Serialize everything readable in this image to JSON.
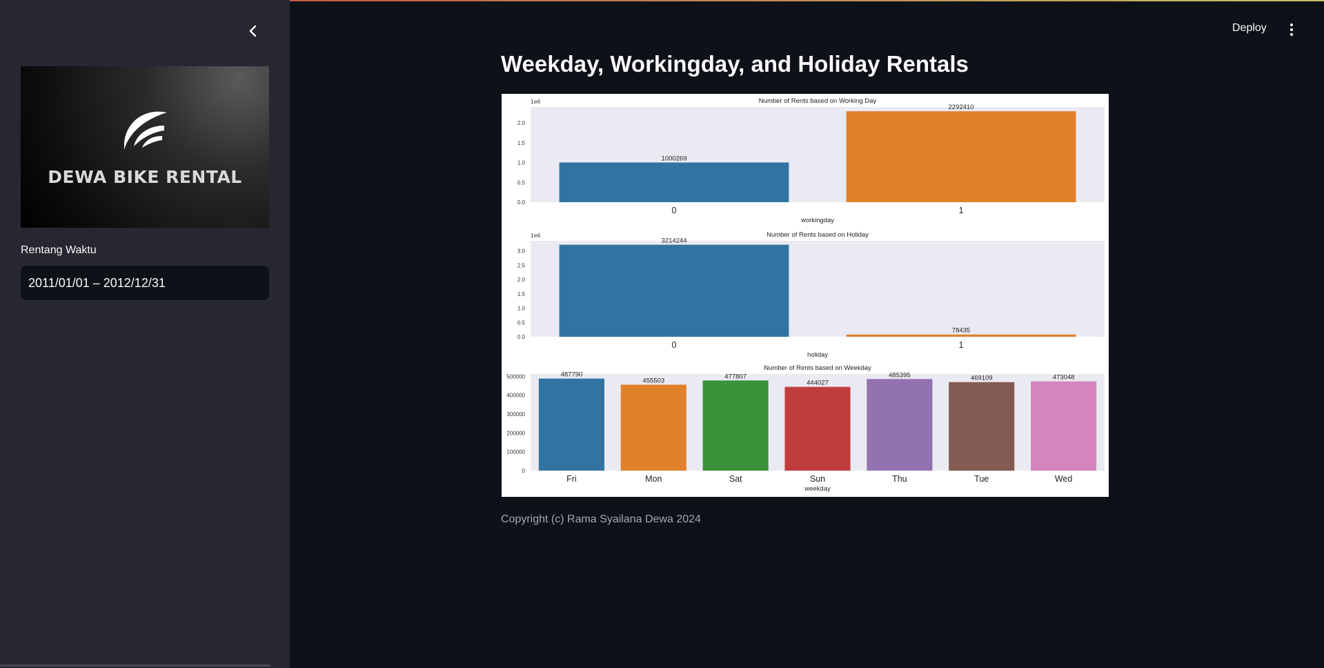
{
  "sidebar": {
    "logo_text": "DEWA BIKE RENTAL",
    "date_label": "Rentang Waktu",
    "date_range": "2011/01/01 – 2012/12/31"
  },
  "header": {
    "deploy_label": "Deploy"
  },
  "main": {
    "title": "Weekday, Workingday, and Holiday Rentals",
    "footer": "Copyright (c) Rama Syailana Dewa 2024"
  },
  "chart_data": [
    {
      "type": "bar",
      "title": "Number of Rents based on Working Day",
      "xlabel": "workingday",
      "ylabel": "",
      "offset_label": "1e6",
      "categories": [
        "0",
        "1"
      ],
      "values": [
        1000269,
        2292410
      ],
      "value_labels": [
        "1000269",
        "2292410"
      ],
      "colors": [
        "#3274a1",
        "#e1812c"
      ],
      "yticks": [
        "0.0",
        "0.5",
        "1.0",
        "1.5",
        "2.0"
      ],
      "ylim": [
        0,
        2.4
      ],
      "scale": 1000000,
      "grid": false
    },
    {
      "type": "bar",
      "title": "Number of Rents based on Holiday",
      "xlabel": "holiday",
      "ylabel": "",
      "offset_label": "1e6",
      "categories": [
        "0",
        "1"
      ],
      "values": [
        3214244,
        78435
      ],
      "value_labels": [
        "3214244",
        "78435"
      ],
      "colors": [
        "#3274a1",
        "#e1812c"
      ],
      "yticks": [
        "0.0",
        "0.5",
        "1.0",
        "1.5",
        "2.0",
        "2.5",
        "3.0"
      ],
      "ylim": [
        0,
        3.35
      ],
      "scale": 1000000,
      "grid": false
    },
    {
      "type": "bar",
      "title": "Number of Rents based on Weekday",
      "xlabel": "weekday",
      "ylabel": "",
      "offset_label": "",
      "categories": [
        "Fri",
        "Mon",
        "Sat",
        "Sun",
        "Thu",
        "Tue",
        "Wed"
      ],
      "values": [
        487790,
        455503,
        477807,
        444027,
        485395,
        469109,
        473048
      ],
      "value_labels": [
        "487790",
        "455503",
        "477807",
        "444027",
        "485395",
        "469109",
        "473048"
      ],
      "colors": [
        "#3274a1",
        "#e1812c",
        "#3a923a",
        "#c03d3e",
        "#9372b2",
        "#845b53",
        "#d684bd"
      ],
      "yticks": [
        "0",
        "100000",
        "200000",
        "300000",
        "400000",
        "500000"
      ],
      "ylim": [
        0,
        512000
      ],
      "scale": 1,
      "grid": false
    }
  ]
}
